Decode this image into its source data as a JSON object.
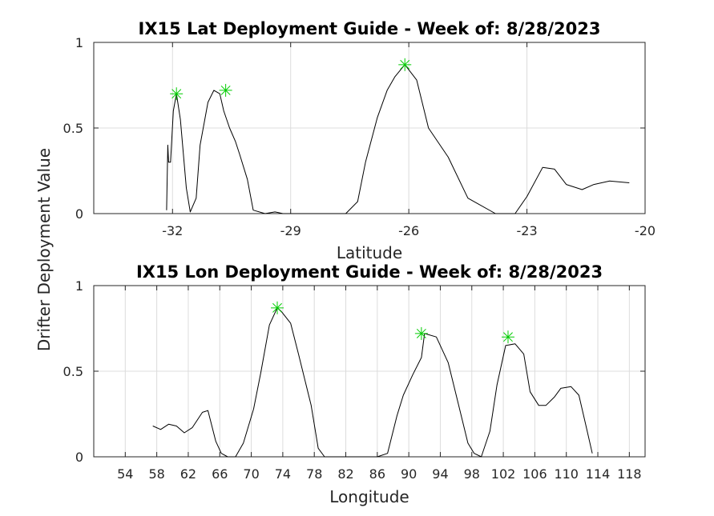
{
  "figure": {
    "shared_ylabel": "Drifter Deployment Value"
  },
  "chart_data": [
    {
      "type": "line",
      "title": "IX15 Lat Deployment Guide - Week of: 8/28/2023",
      "xlabel": "Latitude",
      "ylabel": "Drifter Deployment Value",
      "xlim": [
        -34,
        -20
      ],
      "ylim": [
        0,
        1
      ],
      "xticks": [
        -32,
        -29,
        -26,
        -23,
        -20
      ],
      "xtick_labels": [
        "-32",
        "-29",
        "-26",
        "-23",
        "-20"
      ],
      "yticks": [
        0,
        0.5,
        1
      ],
      "ytick_labels": [
        "0",
        "0.5",
        "1"
      ],
      "grid": true,
      "colors": {
        "line": "#000000",
        "peak_marker": "#00cc00"
      },
      "series": [
        {
          "x": [
            -32.15,
            -32.12,
            -32.1,
            -32.05,
            -31.98,
            -31.9,
            -31.8,
            -31.65,
            -31.55,
            -31.4,
            -31.3,
            -31.1,
            -30.95,
            -30.8,
            -30.7,
            -30.55,
            -30.4,
            -30.3,
            -30.1,
            -29.95,
            -29.65,
            -29.4,
            -29.3,
            -29.2,
            -27.6,
            -27.3,
            -27.1,
            -26.8,
            -26.55,
            -26.35,
            -26.1,
            -25.8,
            -25.5,
            -25.0,
            -24.5,
            -23.8,
            -23.3,
            -23.0,
            -22.6,
            -22.3,
            -22.0,
            -21.6,
            -21.3,
            -20.9,
            -20.4
          ],
          "y": [
            0.02,
            0.4,
            0.3,
            0.3,
            0.6,
            0.7,
            0.55,
            0.15,
            0.01,
            0.09,
            0.4,
            0.65,
            0.72,
            0.7,
            0.6,
            0.5,
            0.42,
            0.35,
            0.2,
            0.02,
            0.0,
            0.01,
            0.005,
            0.0,
            0.0,
            0.07,
            0.3,
            0.56,
            0.72,
            0.8,
            0.87,
            0.78,
            0.5,
            0.33,
            0.09,
            0.0,
            0.0,
            0.1,
            0.27,
            0.26,
            0.17,
            0.14,
            0.17,
            0.19,
            0.18
          ]
        }
      ],
      "peaks": [
        {
          "x": -31.9,
          "y": 0.7
        },
        {
          "x": -30.65,
          "y": 0.72
        },
        {
          "x": -26.1,
          "y": 0.87
        }
      ]
    },
    {
      "type": "line",
      "title": "IX15 Lon Deployment Guide - Week of: 8/28/2023",
      "xlabel": "Longitude",
      "ylabel": "Drifter Deployment Value",
      "xlim": [
        50,
        120
      ],
      "ylim": [
        0,
        1
      ],
      "xticks": [
        54,
        58,
        62,
        66,
        70,
        74,
        78,
        82,
        86,
        90,
        94,
        98,
        102,
        106,
        110,
        114,
        118
      ],
      "xtick_labels": [
        "54",
        "58",
        "62",
        "66",
        "70",
        "74",
        "78",
        "82",
        "86",
        "90",
        "94",
        "98",
        "102",
        "106",
        "110",
        "114",
        "118"
      ],
      "yticks": [
        0,
        0.5,
        1
      ],
      "ytick_labels": [
        "0",
        "0.5",
        "1"
      ],
      "grid": true,
      "colors": {
        "line": "#000000",
        "peak_marker": "#00cc00"
      },
      "series": [
        {
          "x": [
            57.5,
            58.5,
            59.5,
            60.5,
            61.5,
            62.5,
            63.8,
            64.5,
            65.5,
            66.2,
            67.0,
            68.0,
            69.0,
            70.3,
            71.2,
            72.3,
            73.3,
            73.8,
            75.0,
            76.0,
            77.6,
            78.5,
            79.3,
            82.5,
            83.0,
            84.0,
            86.0,
            87.3,
            88.5,
            89.3,
            90.5,
            91.6,
            92.0,
            93.5,
            95.0,
            96.5,
            97.5,
            98.3,
            99.2,
            100.3,
            101.2,
            102.3,
            103.5,
            104.6,
            105.4,
            106.5,
            107.4,
            108.5,
            109.3,
            110.6,
            111.6,
            112.5,
            113.3
          ],
          "y": [
            0.18,
            0.16,
            0.19,
            0.18,
            0.14,
            0.17,
            0.26,
            0.27,
            0.09,
            0.02,
            0.0,
            0.0,
            0.08,
            0.28,
            0.49,
            0.77,
            0.87,
            0.85,
            0.78,
            0.6,
            0.3,
            0.05,
            0.0,
            0.0,
            0.0,
            0.0,
            0.0,
            0.02,
            0.24,
            0.36,
            0.48,
            0.58,
            0.72,
            0.7,
            0.55,
            0.27,
            0.08,
            0.02,
            0.0,
            0.15,
            0.42,
            0.65,
            0.66,
            0.6,
            0.38,
            0.3,
            0.3,
            0.35,
            0.4,
            0.41,
            0.36,
            0.18,
            0.02
          ]
        }
      ],
      "peaks": [
        {
          "x": 73.3,
          "y": 0.87
        },
        {
          "x": 91.6,
          "y": 0.72
        },
        {
          "x": 102.6,
          "y": 0.7
        }
      ]
    }
  ]
}
